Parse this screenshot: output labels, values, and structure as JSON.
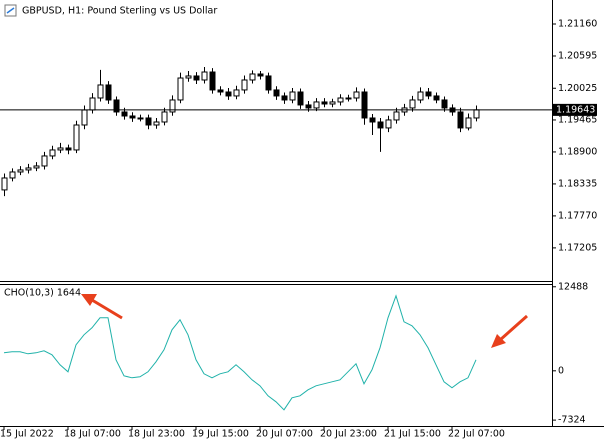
{
  "chart_data": [
    {
      "type": "candlestick",
      "title": "GBPUSD, H1:  Pound Sterling vs US Dollar",
      "categories": [
        "15 Jul 2022",
        null,
        null,
        null,
        null,
        null,
        null,
        null,
        "18 Jul 07:00",
        null,
        null,
        null,
        null,
        null,
        null,
        null,
        "18 Jul 23:00",
        null,
        null,
        null,
        null,
        null,
        null,
        null,
        "19 Jul 15:00",
        null,
        null,
        null,
        null,
        null,
        null,
        null,
        "20 Jul 07:00",
        null,
        null,
        null,
        null,
        null,
        null,
        null,
        "20 Jul 23:00",
        null,
        null,
        null,
        null,
        null,
        null,
        null,
        "21 Jul 15:00",
        null,
        null,
        null,
        null,
        null,
        null,
        null,
        "22 Jul 07:00",
        null,
        null,
        null
      ],
      "open": [
        1.18229,
        1.1844,
        1.18546,
        1.18582,
        1.18617,
        1.18652,
        1.18829,
        1.18935,
        1.1897,
        1.18935,
        1.19376,
        1.19641,
        1.19853,
        1.20083,
        1.19818,
        1.19606,
        1.19535,
        1.195,
        1.195,
        1.19376,
        1.19429,
        1.19606,
        1.19818,
        1.20206,
        1.20242,
        1.20171,
        1.20312,
        1.19995,
        1.19959,
        1.19889,
        1.19995,
        1.20171,
        1.20277,
        1.20242,
        1.19995,
        1.19889,
        1.19818,
        1.19959,
        1.1973,
        1.19677,
        1.19783,
        1.19747,
        1.19783,
        1.19853,
        1.19853,
        1.19959,
        1.195,
        1.19429,
        1.19324,
        1.19465,
        1.19606,
        1.19677,
        1.19818,
        1.19959,
        1.19889,
        1.19818,
        1.19677,
        1.19606,
        1.19324,
        1.195
      ],
      "high": [
        1.1852,
        1.1861,
        1.1865,
        1.1869,
        1.1872,
        1.189,
        1.1901,
        1.1906,
        1.1903,
        1.1945,
        1.1972,
        1.1994,
        1.2035,
        1.2015,
        1.1988,
        1.1968,
        1.196,
        1.1956,
        1.1956,
        1.195,
        1.1968,
        1.199,
        1.203,
        1.2033,
        1.2031,
        1.204,
        1.2038,
        1.2006,
        1.2003,
        1.2007,
        1.2025,
        1.2034,
        1.2033,
        1.203,
        1.2006,
        1.1995,
        1.2003,
        1.2002,
        1.198,
        1.1985,
        1.1985,
        1.1984,
        1.1992,
        1.1991,
        1.2004,
        1.2002,
        1.1957,
        1.195,
        1.1954,
        1.1968,
        1.1975,
        1.1989,
        1.2004,
        1.2003,
        1.1995,
        1.1988,
        1.1974,
        1.1968,
        1.1958,
        1.1972
      ],
      "low": [
        1.1812,
        1.1838,
        1.1849,
        1.1852,
        1.1856,
        1.1859,
        1.1877,
        1.1888,
        1.1886,
        1.1888,
        1.193,
        1.1958,
        1.1979,
        1.1975,
        1.1954,
        1.1947,
        1.1943,
        1.1944,
        1.193,
        1.1931,
        1.1937,
        1.1954,
        1.1976,
        1.2014,
        1.201,
        1.2011,
        1.1993,
        1.199,
        1.1982,
        1.1983,
        1.1993,
        1.2011,
        1.2018,
        1.1993,
        1.1982,
        1.1975,
        1.1976,
        1.1966,
        1.1961,
        1.1962,
        1.1969,
        1.1969,
        1.1972,
        1.1979,
        1.1979,
        1.1938,
        1.192,
        1.189,
        1.1925,
        1.194,
        1.1954,
        1.1961,
        1.1976,
        1.1983,
        1.1976,
        1.1961,
        1.1954,
        1.1925,
        1.1928,
        1.1944
      ],
      "close": [
        1.1844,
        1.18546,
        1.18582,
        1.18617,
        1.18652,
        1.18829,
        1.18935,
        1.1897,
        1.18935,
        1.19376,
        1.19641,
        1.19853,
        1.20083,
        1.19818,
        1.19606,
        1.19535,
        1.195,
        1.195,
        1.19376,
        1.19429,
        1.19606,
        1.19818,
        1.20206,
        1.20242,
        1.20171,
        1.20312,
        1.19995,
        1.19959,
        1.19889,
        1.19995,
        1.20171,
        1.20277,
        1.20242,
        1.19995,
        1.19889,
        1.19818,
        1.19959,
        1.1973,
        1.19677,
        1.19783,
        1.19747,
        1.19783,
        1.19853,
        1.19853,
        1.19959,
        1.195,
        1.19429,
        1.19324,
        1.19465,
        1.19606,
        1.19677,
        1.19818,
        1.19959,
        1.19889,
        1.19818,
        1.19677,
        1.19606,
        1.19324,
        1.195,
        1.19643
      ],
      "up_color": "#ffffff",
      "down_color": "#000000",
      "edge_color": "#000000",
      "last_price": 1.19643,
      "ylim": [
        1.1662,
        1.21584
      ],
      "yticks": [
        {
          "value": 1.2116,
          "label": "1.21160"
        },
        1.20595,
        1.20025,
        1.19465,
        {
          "value": 1.189,
          "label": "1.18900"
        },
        1.18335,
        {
          "value": 1.1777,
          "label": "1.17770"
        },
        1.17205
      ]
    },
    {
      "type": "line",
      "title": "CHO(10,3) 1644",
      "series": [
        {
          "name": "CHO(10,3)",
          "color": "#20b2aa",
          "values": [
            2677,
            2825,
            2825,
            2528,
            2677,
            2974,
            2379,
            892,
            -149,
            3866,
            5353,
            6394,
            7881,
            7881,
            1636,
            -744,
            -1041,
            -892,
            -149,
            1338,
            3123,
            6097,
            7584,
            5353,
            1636,
            -446,
            -1041,
            -446,
            -149,
            892,
            -149,
            -1338,
            -2231,
            -3718,
            -4610,
            -5799,
            -4015,
            -3718,
            -2825,
            -2231,
            -1933,
            -1636,
            -1338,
            -149,
            1041,
            -1933,
            149,
            3420,
            7881,
            11153,
            7286,
            6692,
            5353,
            3420,
            892,
            -1636,
            -2528,
            -1636,
            -1041,
            1644
          ]
        }
      ],
      "ylim": [
        -8200,
        12900
      ],
      "yticks": [
        12488,
        0,
        -7324
      ]
    }
  ]
}
